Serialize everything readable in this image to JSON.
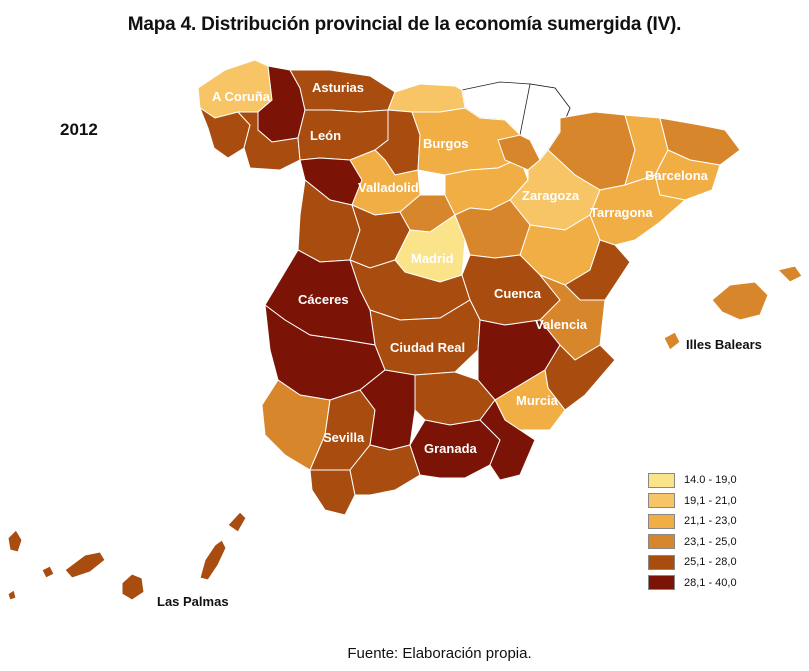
{
  "title": "Mapa 4. Distribución provincial de la economía sumergida (IV).",
  "year": "2012",
  "source": "Fuente: Elaboración propia.",
  "colors": {
    "c1": "#fbe38a",
    "c2": "#f7c565",
    "c3": "#f0ae44",
    "c4": "#d8862b",
    "c5": "#a84c0f",
    "c6": "#7b1406",
    "nodata": "#ffffff"
  },
  "legend": [
    {
      "label": "14.0 - 19,0",
      "color": "#fbe38a"
    },
    {
      "label": "19,1 - 21,0",
      "color": "#f7c565"
    },
    {
      "label": "21,1 - 23,0",
      "color": "#f0ae44"
    },
    {
      "label": "23,1 - 25,0",
      "color": "#d8862b"
    },
    {
      "label": "25,1 - 28,0",
      "color": "#a84c0f"
    },
    {
      "label": "28,1 - 40,0",
      "color": "#7b1406"
    }
  ],
  "labels": {
    "a_coruna": "A Coruña",
    "asturias": "Asturias",
    "leon": "León",
    "burgos": "Burgos",
    "valladolid": "Valladolid",
    "barcelona": "Barcelona",
    "zaragoza": "Zaragoza",
    "tarragona": "Tarragona",
    "madrid": "Madrid",
    "caceres": "Cáceres",
    "cuenca": "Cuenca",
    "valencia": "Valencia",
    "illes_balears": "Illes Balears",
    "ciudad_real": "Ciudad Real",
    "murcia": "Murcia",
    "sevilla": "Sevilla",
    "granada": "Granada",
    "las_palmas": "Las Palmas"
  }
}
